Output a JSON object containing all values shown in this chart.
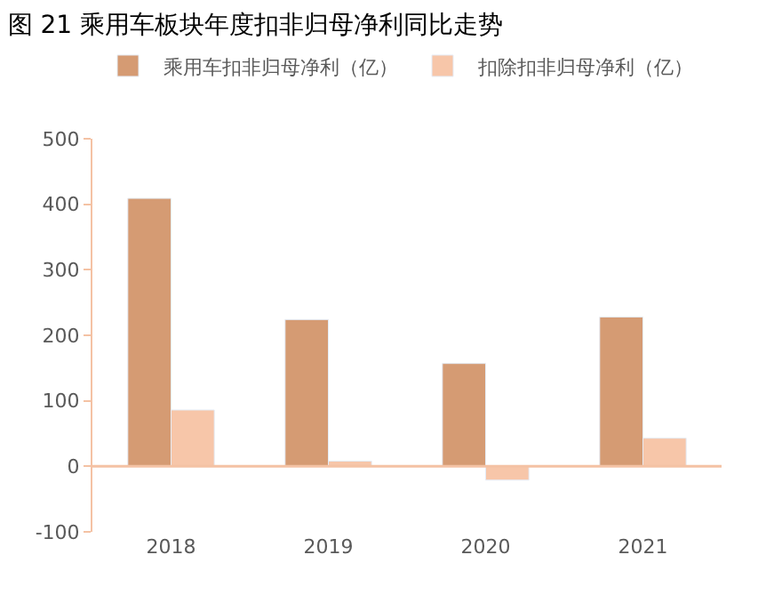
{
  "chart_data": {
    "type": "bar",
    "title": "图 21 乘用车板块年度扣非归母净利同比走势",
    "categories": [
      "2018",
      "2019",
      "2020",
      "2021"
    ],
    "series": [
      {
        "name": "乘用车扣非归母净利（亿）",
        "color": "#d59b73",
        "values": [
          409,
          224,
          157,
          228
        ]
      },
      {
        "name": "扣除扣非归母净利（亿）",
        "color": "#f7c6a9",
        "values": [
          86,
          8,
          -21,
          43
        ]
      }
    ],
    "ref_lines": [
      {
        "axis": "y",
        "value": 0,
        "color": "#f4c2a4"
      }
    ],
    "ylim": [
      -100,
      500
    ],
    "yticks": [
      -100,
      0,
      100,
      200,
      300,
      400,
      500
    ],
    "legend": "top"
  }
}
